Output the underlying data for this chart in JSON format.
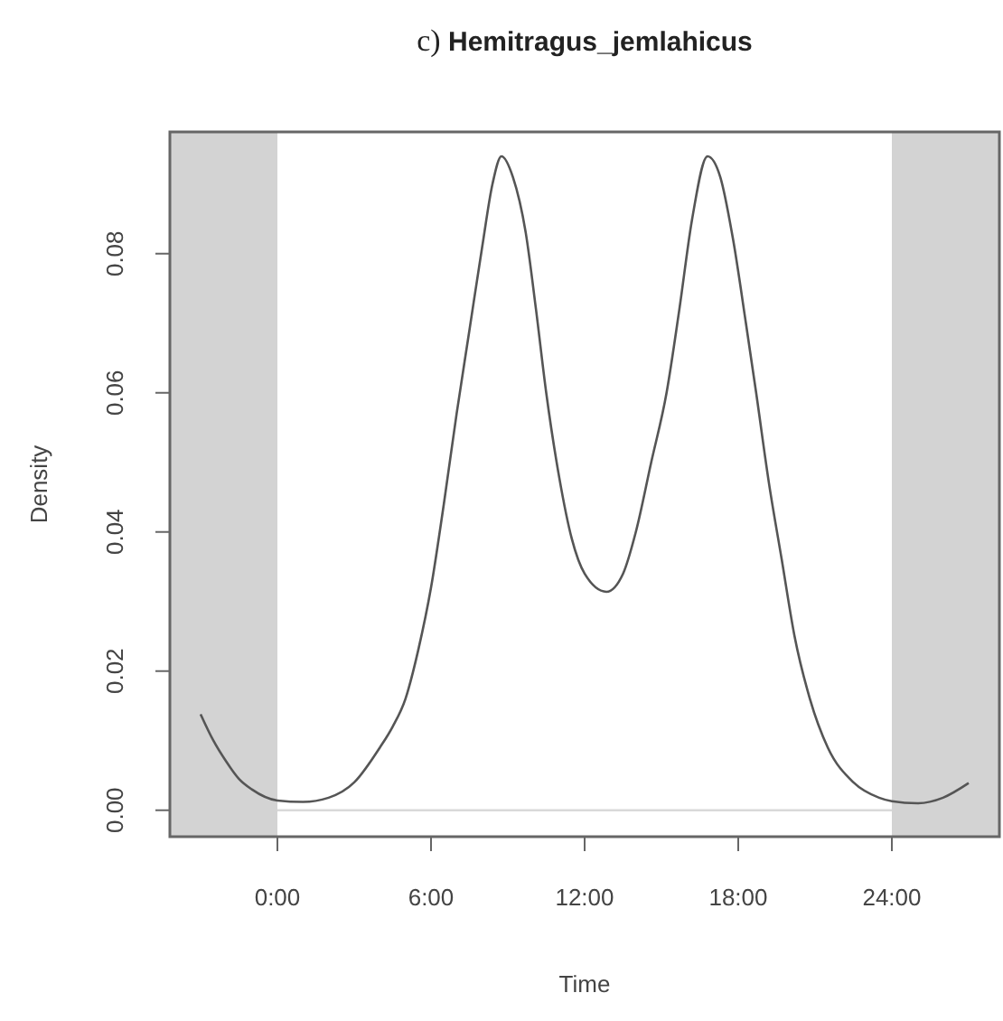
{
  "chart_data": {
    "type": "line",
    "title": "c) Hemitragus_jemlahicus",
    "xlabel": "Time",
    "ylabel": "Density",
    "x": [
      -3,
      -2.5,
      -2,
      -1.5,
      -1,
      0,
      1,
      2,
      3,
      4,
      4.5,
      5,
      5.5,
      6,
      6.5,
      7,
      7.5,
      8,
      8.4,
      8.75,
      9.2,
      9.7,
      10.1,
      10.5,
      11,
      11.5,
      12,
      12.85,
      13.5,
      14,
      14.6,
      15.2,
      15.7,
      16.2,
      16.8,
      17.3,
      17.8,
      18.3,
      18.7,
      19.2,
      19.7,
      20.2,
      20.8,
      21.5,
      22.5,
      23.5,
      24,
      25,
      26,
      27
    ],
    "series": [
      {
        "color": "#555555",
        "values": [
          0.0138,
          0.01,
          0.007,
          0.0045,
          0.003,
          0.0014,
          0.0012,
          0.0018,
          0.004,
          0.009,
          0.012,
          0.016,
          0.023,
          0.032,
          0.044,
          0.057,
          0.069,
          0.081,
          0.09,
          0.094,
          0.091,
          0.083,
          0.072,
          0.06,
          0.048,
          0.039,
          0.034,
          0.0314,
          0.034,
          0.04,
          0.05,
          0.06,
          0.072,
          0.085,
          0.094,
          0.091,
          0.082,
          0.07,
          0.06,
          0.047,
          0.036,
          0.025,
          0.016,
          0.009,
          0.004,
          0.0018,
          0.0013,
          0.001,
          0.0018,
          0.0039
        ]
      }
    ],
    "xlim": [
      -4.2,
      28.2
    ],
    "ylim": [
      -0.0038,
      0.0975
    ],
    "xticks": [
      {
        "value": 0,
        "label": "0:00"
      },
      {
        "value": 6,
        "label": "6:00"
      },
      {
        "value": 12,
        "label": "12:00"
      },
      {
        "value": 18,
        "label": "18:00"
      },
      {
        "value": 24,
        "label": "24:00"
      }
    ],
    "yticks": [
      {
        "value": 0,
        "label": "0.00"
      },
      {
        "value": 0.02,
        "label": "0.02"
      },
      {
        "value": 0.04,
        "label": "0.04"
      },
      {
        "value": 0.06,
        "label": "0.06"
      },
      {
        "value": 0.08,
        "label": "0.08"
      }
    ],
    "bands": [
      {
        "axis": "x",
        "from": -4.2,
        "to": 0,
        "color": "#d3d3d3"
      },
      {
        "axis": "x",
        "from": 24,
        "to": 28.2,
        "color": "#d3d3d3"
      }
    ],
    "ref_lines": [
      {
        "axis": "y",
        "value": 0,
        "color": "#d9d9d9"
      }
    ],
    "marker": "none",
    "line_style": "solid",
    "grid": false
  }
}
